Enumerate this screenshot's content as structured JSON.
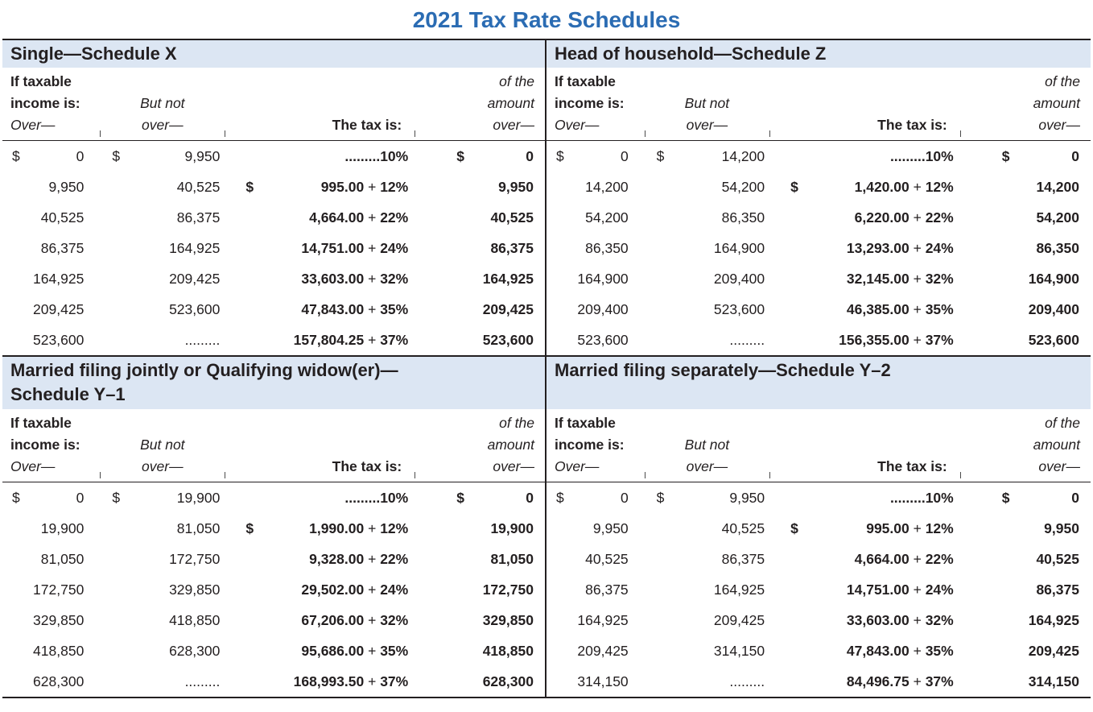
{
  "page": {
    "title": "2021 Tax Rate Schedules"
  },
  "colors": {
    "title_blue": "#2b6cb3",
    "band_blue": "#dce6f3",
    "text": "#231f20"
  },
  "header": {
    "col1_line1": "If taxable",
    "col1_line2": "income is:",
    "col1_line3": "Over—",
    "col2_line1": "But not",
    "col2_line2": "over—",
    "col3": "The tax is:",
    "col4_line1": "of the",
    "col4_line2": "amount",
    "col4_line3": "over—"
  },
  "schedules": [
    {
      "band_lines": [
        "Single—Schedule X"
      ],
      "rows": [
        {
          "over_d": "$",
          "over": "0",
          "but_d": "$",
          "but": "9,950",
          "tax_d": "",
          "tax_amt": ".........",
          "plus": false,
          "tax_rate": "10%",
          "amt_d": "$",
          "amt": "0"
        },
        {
          "over_d": "",
          "over": "9,950",
          "but_d": "",
          "but": "40,525",
          "tax_d": "$",
          "tax_amt": "995.00",
          "plus": true,
          "tax_rate": "12%",
          "amt_d": "",
          "amt": "9,950"
        },
        {
          "over_d": "",
          "over": "40,525",
          "but_d": "",
          "but": "86,375",
          "tax_d": "",
          "tax_amt": "4,664.00",
          "plus": true,
          "tax_rate": "22%",
          "amt_d": "",
          "amt": "40,525"
        },
        {
          "over_d": "",
          "over": "86,375",
          "but_d": "",
          "but": "164,925",
          "tax_d": "",
          "tax_amt": "14,751.00",
          "plus": true,
          "tax_rate": "24%",
          "amt_d": "",
          "amt": "86,375"
        },
        {
          "over_d": "",
          "over": "164,925",
          "but_d": "",
          "but": "209,425",
          "tax_d": "",
          "tax_amt": "33,603.00",
          "plus": true,
          "tax_rate": "32%",
          "amt_d": "",
          "amt": "164,925"
        },
        {
          "over_d": "",
          "over": "209,425",
          "but_d": "",
          "but": "523,600",
          "tax_d": "",
          "tax_amt": "47,843.00",
          "plus": true,
          "tax_rate": "35%",
          "amt_d": "",
          "amt": "209,425"
        },
        {
          "over_d": "",
          "over": "523,600",
          "but_d": "",
          "but": ".........",
          "tax_d": "",
          "tax_amt": "157,804.25",
          "plus": true,
          "tax_rate": "37%",
          "amt_d": "",
          "amt": "523,600"
        }
      ]
    },
    {
      "band_lines": [
        "Head of household—Schedule Z"
      ],
      "rows": [
        {
          "over_d": "$",
          "over": "0",
          "but_d": "$",
          "but": "14,200",
          "tax_d": "",
          "tax_amt": ".........",
          "plus": false,
          "tax_rate": "10%",
          "amt_d": "$",
          "amt": "0"
        },
        {
          "over_d": "",
          "over": "14,200",
          "but_d": "",
          "but": "54,200",
          "tax_d": "$",
          "tax_amt": "1,420.00",
          "plus": true,
          "tax_rate": "12%",
          "amt_d": "",
          "amt": "14,200"
        },
        {
          "over_d": "",
          "over": "54,200",
          "but_d": "",
          "but": "86,350",
          "tax_d": "",
          "tax_amt": "6,220.00",
          "plus": true,
          "tax_rate": "22%",
          "amt_d": "",
          "amt": "54,200"
        },
        {
          "over_d": "",
          "over": "86,350",
          "but_d": "",
          "but": "164,900",
          "tax_d": "",
          "tax_amt": "13,293.00",
          "plus": true,
          "tax_rate": "24%",
          "amt_d": "",
          "amt": "86,350"
        },
        {
          "over_d": "",
          "over": "164,900",
          "but_d": "",
          "but": "209,400",
          "tax_d": "",
          "tax_amt": "32,145.00",
          "plus": true,
          "tax_rate": "32%",
          "amt_d": "",
          "amt": "164,900"
        },
        {
          "over_d": "",
          "over": "209,400",
          "but_d": "",
          "but": "523,600",
          "tax_d": "",
          "tax_amt": "46,385.00",
          "plus": true,
          "tax_rate": "35%",
          "amt_d": "",
          "amt": "209,400"
        },
        {
          "over_d": "",
          "over": "523,600",
          "but_d": "",
          "but": ".........",
          "tax_d": "",
          "tax_amt": "156,355.00",
          "plus": true,
          "tax_rate": "37%",
          "amt_d": "",
          "amt": "523,600"
        }
      ]
    },
    {
      "band_lines": [
        "Married filing jointly or Qualifying widow(er)—",
        "Schedule Y–1"
      ],
      "rows": [
        {
          "over_d": "$",
          "over": "0",
          "but_d": "$",
          "but": "19,900",
          "tax_d": "",
          "tax_amt": ".........",
          "plus": false,
          "tax_rate": "10%",
          "amt_d": "$",
          "amt": "0"
        },
        {
          "over_d": "",
          "over": "19,900",
          "but_d": "",
          "but": "81,050",
          "tax_d": "$",
          "tax_amt": "1,990.00",
          "plus": true,
          "tax_rate": "12%",
          "amt_d": "",
          "amt": "19,900"
        },
        {
          "over_d": "",
          "over": "81,050",
          "but_d": "",
          "but": "172,750",
          "tax_d": "",
          "tax_amt": "9,328.00",
          "plus": true,
          "tax_rate": "22%",
          "amt_d": "",
          "amt": "81,050"
        },
        {
          "over_d": "",
          "over": "172,750",
          "but_d": "",
          "but": "329,850",
          "tax_d": "",
          "tax_amt": "29,502.00",
          "plus": true,
          "tax_rate": "24%",
          "amt_d": "",
          "amt": "172,750"
        },
        {
          "over_d": "",
          "over": "329,850",
          "but_d": "",
          "but": "418,850",
          "tax_d": "",
          "tax_amt": "67,206.00",
          "plus": true,
          "tax_rate": "32%",
          "amt_d": "",
          "amt": "329,850"
        },
        {
          "over_d": "",
          "over": "418,850",
          "but_d": "",
          "but": "628,300",
          "tax_d": "",
          "tax_amt": "95,686.00",
          "plus": true,
          "tax_rate": "35%",
          "amt_d": "",
          "amt": "418,850"
        },
        {
          "over_d": "",
          "over": "628,300",
          "but_d": "",
          "but": ".........",
          "tax_d": "",
          "tax_amt": "168,993.50",
          "plus": true,
          "tax_rate": "37%",
          "amt_d": "",
          "amt": "628,300"
        }
      ]
    },
    {
      "band_lines": [
        "Married filing separately—Schedule Y–2"
      ],
      "rows": [
        {
          "over_d": "$",
          "over": "0",
          "but_d": "$",
          "but": "9,950",
          "tax_d": "",
          "tax_amt": ".........",
          "plus": false,
          "tax_rate": "10%",
          "amt_d": "$",
          "amt": "0"
        },
        {
          "over_d": "",
          "over": "9,950",
          "but_d": "",
          "but": "40,525",
          "tax_d": "$",
          "tax_amt": "995.00",
          "plus": true,
          "tax_rate": "12%",
          "amt_d": "",
          "amt": "9,950"
        },
        {
          "over_d": "",
          "over": "40,525",
          "but_d": "",
          "but": "86,375",
          "tax_d": "",
          "tax_amt": "4,664.00",
          "plus": true,
          "tax_rate": "22%",
          "amt_d": "",
          "amt": "40,525"
        },
        {
          "over_d": "",
          "over": "86,375",
          "but_d": "",
          "but": "164,925",
          "tax_d": "",
          "tax_amt": "14,751.00",
          "plus": true,
          "tax_rate": "24%",
          "amt_d": "",
          "amt": "86,375"
        },
        {
          "over_d": "",
          "over": "164,925",
          "but_d": "",
          "but": "209,425",
          "tax_d": "",
          "tax_amt": "33,603.00",
          "plus": true,
          "tax_rate": "32%",
          "amt_d": "",
          "amt": "164,925"
        },
        {
          "over_d": "",
          "over": "209,425",
          "but_d": "",
          "but": "314,150",
          "tax_d": "",
          "tax_amt": "47,843.00",
          "plus": true,
          "tax_rate": "35%",
          "amt_d": "",
          "amt": "209,425"
        },
        {
          "over_d": "",
          "over": "314,150",
          "but_d": "",
          "but": ".........",
          "tax_d": "",
          "tax_amt": "84,496.75",
          "plus": true,
          "tax_rate": "37%",
          "amt_d": "",
          "amt": "314,150"
        }
      ]
    }
  ]
}
